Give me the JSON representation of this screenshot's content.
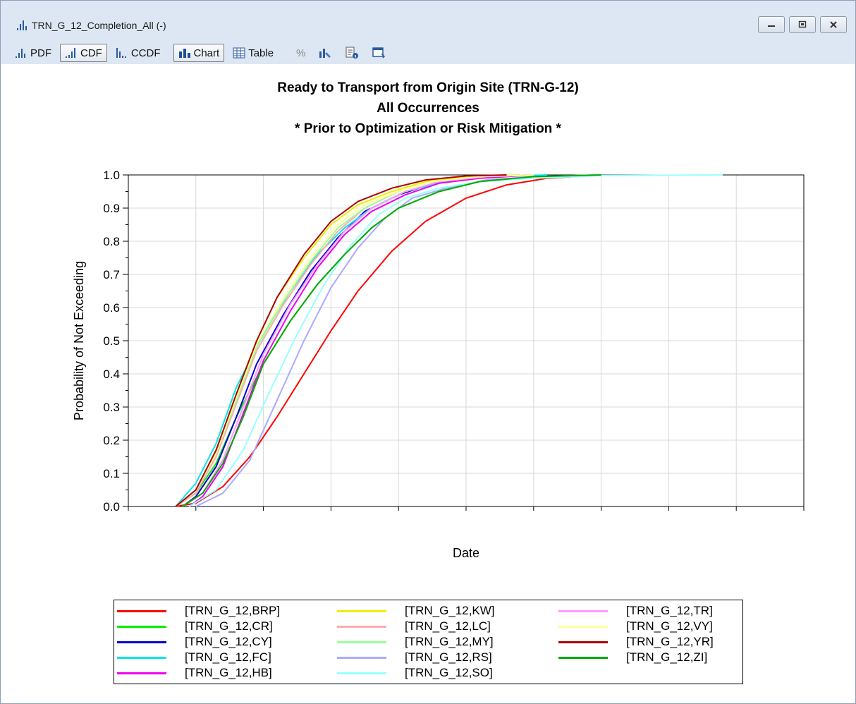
{
  "window": {
    "title": "TRN_G_12_Completion_All (-)",
    "buttons": [
      "minimize",
      "restore",
      "close"
    ]
  },
  "toolbar": {
    "pdf_label": "PDF",
    "cdf_label": "CDF",
    "ccdf_label": "CCDF",
    "chart_label": "Chart",
    "table_label": "Table",
    "percent_label": "%",
    "active": [
      "CDF",
      "Chart"
    ]
  },
  "chart_data": {
    "type": "line",
    "title": "Ready to Transport from Origin Site (TRN-G-12)",
    "subtitle_lines": [
      "All Occurrences",
      "* Prior to Optimization or Risk Mitigation *"
    ],
    "xlabel": "Date",
    "ylabel": "Probability of Not Exceeding",
    "ylim": [
      0,
      1
    ],
    "xlim": [
      0,
      10
    ],
    "x_ticks_count": 10,
    "y_ticks": [
      "0.0",
      "0.1",
      "0.2",
      "0.3",
      "0.4",
      "0.5",
      "0.6",
      "0.7",
      "0.8",
      "0.9",
      "1.0"
    ],
    "grid": true,
    "legend_position": "bottom",
    "series": [
      {
        "name": "[TRN_G_12,BRP]",
        "color": "#ff0000",
        "x": [
          0.7,
          1.0,
          1.4,
          1.8,
          2.2,
          2.6,
          3.0,
          3.4,
          3.9,
          4.4,
          5.0,
          5.6,
          6.2,
          7.0
        ],
        "y": [
          0,
          0.01,
          0.06,
          0.15,
          0.27,
          0.4,
          0.53,
          0.65,
          0.77,
          0.86,
          0.93,
          0.97,
          0.99,
          1.0
        ]
      },
      {
        "name": "[TRN_G_12,CR]",
        "color": "#00ee00",
        "x": [
          0.7,
          1.0,
          1.3,
          1.6,
          2.0,
          2.4,
          2.8,
          3.2,
          3.6,
          4.0,
          4.6,
          5.2,
          6.0,
          7.0
        ],
        "y": [
          0,
          0.04,
          0.13,
          0.27,
          0.43,
          0.56,
          0.67,
          0.76,
          0.84,
          0.9,
          0.95,
          0.98,
          0.995,
          1.0
        ]
      },
      {
        "name": "[TRN_G_12,CY]",
        "color": "#0000cc",
        "x": [
          0.8,
          1.0,
          1.3,
          1.6,
          1.9,
          2.3,
          2.7,
          3.1,
          3.5,
          4.0,
          4.6,
          5.2,
          6.0
        ],
        "y": [
          0,
          0.03,
          0.12,
          0.27,
          0.43,
          0.58,
          0.71,
          0.81,
          0.89,
          0.94,
          0.98,
          0.995,
          1.0
        ]
      },
      {
        "name": "[TRN_G_12,FC]",
        "color": "#00e5ee",
        "x": [
          0.7,
          1.0,
          1.3,
          1.6,
          2.0,
          2.4,
          2.8,
          3.2,
          3.6,
          4.1,
          4.7,
          5.4,
          6.2
        ],
        "y": [
          0,
          0.07,
          0.19,
          0.36,
          0.52,
          0.65,
          0.76,
          0.84,
          0.9,
          0.95,
          0.98,
          0.995,
          1.0
        ]
      },
      {
        "name": "[TRN_G_12,HB]",
        "color": "#ee00ee",
        "x": [
          0.9,
          1.1,
          1.4,
          1.7,
          2.0,
          2.4,
          2.8,
          3.2,
          3.6,
          4.1,
          4.6,
          5.2,
          6.0
        ],
        "y": [
          0,
          0.03,
          0.12,
          0.28,
          0.44,
          0.59,
          0.72,
          0.82,
          0.89,
          0.94,
          0.975,
          0.99,
          1.0
        ]
      },
      {
        "name": "[TRN_G_12,KW]",
        "color": "#eeee00",
        "x": [
          0.7,
          1.0,
          1.3,
          1.6,
          1.9,
          2.2,
          2.6,
          3.0,
          3.4,
          3.9,
          4.4,
          5.0,
          5.8
        ],
        "y": [
          0,
          0.05,
          0.17,
          0.34,
          0.5,
          0.63,
          0.75,
          0.85,
          0.91,
          0.95,
          0.98,
          0.995,
          1.0
        ]
      },
      {
        "name": "[TRN_G_12,LC]",
        "color": "#ffaaaa",
        "x": [
          0.7,
          1.0,
          1.3,
          1.6,
          1.9,
          2.3,
          2.7,
          3.1,
          3.5,
          4.0,
          4.5,
          5.2,
          6.0
        ],
        "y": [
          0,
          0.04,
          0.15,
          0.31,
          0.47,
          0.61,
          0.73,
          0.83,
          0.9,
          0.95,
          0.98,
          0.995,
          1.0
        ]
      },
      {
        "name": "[TRN_G_12,MY]",
        "color": "#99ff99",
        "x": [
          0.7,
          1.0,
          1.3,
          1.6,
          1.9,
          2.3,
          2.7,
          3.1,
          3.5,
          4.0,
          4.5,
          5.2,
          6.0
        ],
        "y": [
          0,
          0.05,
          0.16,
          0.32,
          0.48,
          0.62,
          0.74,
          0.84,
          0.9,
          0.95,
          0.98,
          0.995,
          1.0
        ]
      },
      {
        "name": "[TRN_G_12,RS]",
        "color": "#aaaaff",
        "x": [
          1.0,
          1.4,
          1.8,
          2.2,
          2.6,
          3.0,
          3.4,
          3.8,
          4.2,
          4.7,
          5.3,
          6.0,
          7.0
        ],
        "y": [
          0,
          0.04,
          0.14,
          0.32,
          0.5,
          0.66,
          0.78,
          0.87,
          0.93,
          0.96,
          0.985,
          0.995,
          1.0
        ]
      },
      {
        "name": "[TRN_G_12,SO]",
        "color": "#99ffff",
        "x": [
          0.9,
          1.3,
          1.7,
          2.1,
          2.5,
          2.9,
          3.3,
          3.7,
          4.1,
          4.6,
          5.2,
          6.0,
          7.0,
          8.8
        ],
        "y": [
          0,
          0.05,
          0.17,
          0.35,
          0.52,
          0.67,
          0.79,
          0.88,
          0.93,
          0.96,
          0.98,
          0.99,
          0.998,
          1.0
        ]
      },
      {
        "name": "[TRN_G_12,TR]",
        "color": "#ff99ff",
        "x": [
          0.8,
          1.1,
          1.4,
          1.7,
          2.0,
          2.4,
          2.8,
          3.2,
          3.6,
          4.1,
          4.6,
          5.3,
          6.0
        ],
        "y": [
          0,
          0.04,
          0.14,
          0.3,
          0.46,
          0.61,
          0.73,
          0.83,
          0.9,
          0.95,
          0.98,
          0.995,
          1.0
        ]
      },
      {
        "name": "[TRN_G_12,VY]",
        "color": "#ffff99",
        "x": [
          0.7,
          1.0,
          1.3,
          1.6,
          1.9,
          2.3,
          2.7,
          3.1,
          3.5,
          4.0,
          4.5,
          5.2,
          6.0
        ],
        "y": [
          0,
          0.05,
          0.16,
          0.33,
          0.49,
          0.63,
          0.75,
          0.85,
          0.91,
          0.95,
          0.98,
          0.995,
          1.0
        ]
      },
      {
        "name": "[TRN_G_12,YR]",
        "color": "#aa0000",
        "x": [
          0.7,
          1.0,
          1.3,
          1.6,
          1.9,
          2.2,
          2.6,
          3.0,
          3.4,
          3.9,
          4.4,
          5.0,
          5.6
        ],
        "y": [
          0,
          0.05,
          0.17,
          0.34,
          0.5,
          0.63,
          0.76,
          0.86,
          0.92,
          0.96,
          0.985,
          0.997,
          1.0
        ]
      },
      {
        "name": "[TRN_G_12,ZI]",
        "color": "#00aa00",
        "x": [
          0.8,
          1.1,
          1.4,
          1.7,
          2.0,
          2.4,
          2.8,
          3.2,
          3.6,
          4.0,
          4.6,
          5.2,
          6.0,
          7.0
        ],
        "y": [
          0,
          0.04,
          0.13,
          0.27,
          0.43,
          0.56,
          0.67,
          0.76,
          0.84,
          0.9,
          0.95,
          0.98,
          0.995,
          1.0
        ]
      }
    ]
  }
}
